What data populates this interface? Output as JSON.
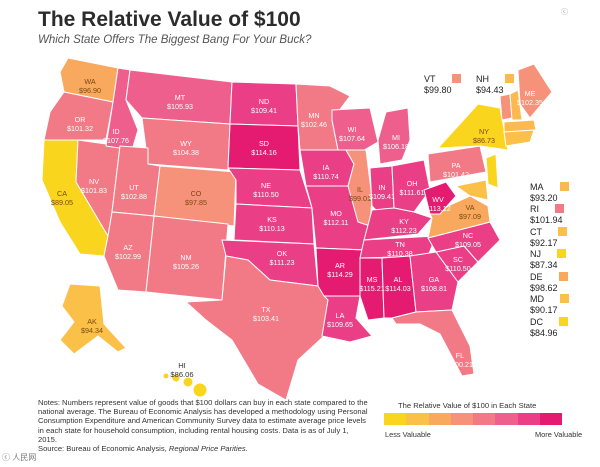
{
  "title": "The Relative Value of $100",
  "subtitle": "Which State Offers The Biggest Bang For Your Buck?",
  "notes": {
    "text": "Notes: Numbers represent value of goods that $100 dollars can buy in each state compared to the national average. The Bureau of Economic Analysis has developed a methodology using Personal Consumption Expenditure and American Community Survey data to estimate average price levels in each state for household consumption, including rental housing costs. Data is as of July 1, 2015.",
    "source_prefix": "Source: Bureau of Economic Analysis, ",
    "source_title": "Regional Price Parities."
  },
  "legend": {
    "title": "The Relative Value of $100 in Each State",
    "less": "Less Valuable",
    "more": "More Valuable",
    "colors": [
      "#f9d51e",
      "#fbc048",
      "#f9a95e",
      "#f6927a",
      "#f27a86",
      "#ef5f8e",
      "#ea3f86",
      "#e51b72"
    ]
  },
  "top_right": "ⓒ",
  "watermark": "ⓒ 人民网",
  "state_values": {
    "WA": "$96.90",
    "OR": "$101.32",
    "CA": "$89.05",
    "ID": "$107.76",
    "NV": "$101.83",
    "MT": "$105.93",
    "WY": "$104.38",
    "UT": "$102.88",
    "AZ": "$102.99",
    "CO": "$97.85",
    "NM": "$105.26",
    "ND": "$109.41",
    "SD": "$114.16",
    "NE": "$110.50",
    "KS": "$110.13",
    "OK": "$111.23",
    "TX": "$103.41",
    "MN": "$102.46",
    "IA": "$110.74",
    "MO": "$112.11",
    "AR": "$114.29",
    "LA": "$109.65",
    "WI": "$107.64",
    "IL": "$99.01",
    "MI": "$106.18",
    "IN": "$109.41",
    "OH": "$111.61",
    "KY": "$112.23",
    "TN": "$110.38",
    "MS": "$115.21",
    "AL": "$114.03",
    "GA": "$108.81",
    "FL": "$100.21",
    "SC": "$110.50",
    "NC": "$109.05",
    "VA": "$97.09",
    "WV": "$113.12",
    "PA": "$101.42",
    "NY": "$86.73",
    "ME": "$102.35",
    "AK": "$94.34",
    "HI": "$86.06"
  },
  "side_states": [
    {
      "abbr": "VT",
      "value": "$99.80",
      "color": "#f6927a"
    },
    {
      "abbr": "NH",
      "value": "$94.43",
      "color": "#fbb950"
    },
    {
      "abbr": "MA",
      "value": "$93.20",
      "color": "#fbb950"
    },
    {
      "abbr": "RI",
      "value": "$101.94",
      "color": "#f27a86"
    },
    {
      "abbr": "CT",
      "value": "$92.17",
      "color": "#fbc048"
    },
    {
      "abbr": "NJ",
      "value": "$87.34",
      "color": "#f9d51e"
    },
    {
      "abbr": "DE",
      "value": "$98.62",
      "color": "#f9a95e"
    },
    {
      "abbr": "MD",
      "value": "$90.17",
      "color": "#fbc048"
    },
    {
      "abbr": "DC",
      "value": "$84.96",
      "color": "#f9d51e"
    }
  ]
}
